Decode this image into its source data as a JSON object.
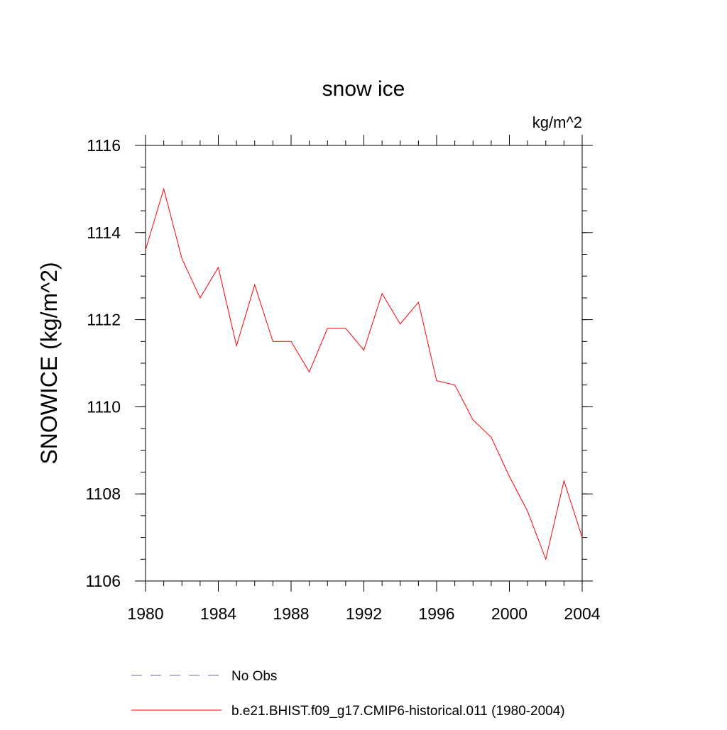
{
  "chart_data": {
    "type": "line",
    "title": "snow ice",
    "units_label": "kg/m^2",
    "ylabel": "SNOWICE  (kg/m^2)",
    "xlabel": "",
    "xlim": [
      1980,
      2004
    ],
    "ylim": [
      1106,
      1116
    ],
    "x_ticks": [
      1980,
      1984,
      1988,
      1992,
      1996,
      2000,
      2004
    ],
    "y_ticks": [
      1106,
      1108,
      1110,
      1112,
      1114,
      1116
    ],
    "x_tick_labels": [
      "1980",
      "1984",
      "1988",
      "1992",
      "1996",
      "2000",
      "2004"
    ],
    "y_tick_labels": [
      "1106",
      "1108",
      "1110",
      "1112",
      "1114",
      "1116"
    ],
    "grid": false,
    "legend_position": "bottom",
    "series": [
      {
        "name": "b.e21.BHIST.f09_g17.CMIP6-historical.011 (1980-2004)",
        "color": "#ff0000",
        "dash": "solid",
        "x": [
          1980,
          1981,
          1982,
          1983,
          1984,
          1985,
          1986,
          1987,
          1988,
          1989,
          1990,
          1991,
          1992,
          1993,
          1994,
          1995,
          1996,
          1997,
          1998,
          1999,
          2000,
          2001,
          2002,
          2003,
          2004
        ],
        "values": [
          1113.6,
          1115.0,
          1113.4,
          1112.5,
          1113.2,
          1111.4,
          1112.8,
          1111.5,
          1111.5,
          1110.8,
          1111.8,
          1111.8,
          1111.3,
          1112.6,
          1111.9,
          1112.4,
          1110.6,
          1110.5,
          1109.7,
          1109.3,
          1108.4,
          1107.6,
          1106.5,
          1108.3,
          1107.0
        ]
      }
    ],
    "legend": [
      {
        "label": "No Obs",
        "color": "#6a6ab0",
        "dash": "dashed"
      },
      {
        "label": "b.e21.BHIST.f09_g17.CMIP6-historical.011 (1980-2004)",
        "color": "#ff0000",
        "dash": "solid"
      }
    ]
  }
}
